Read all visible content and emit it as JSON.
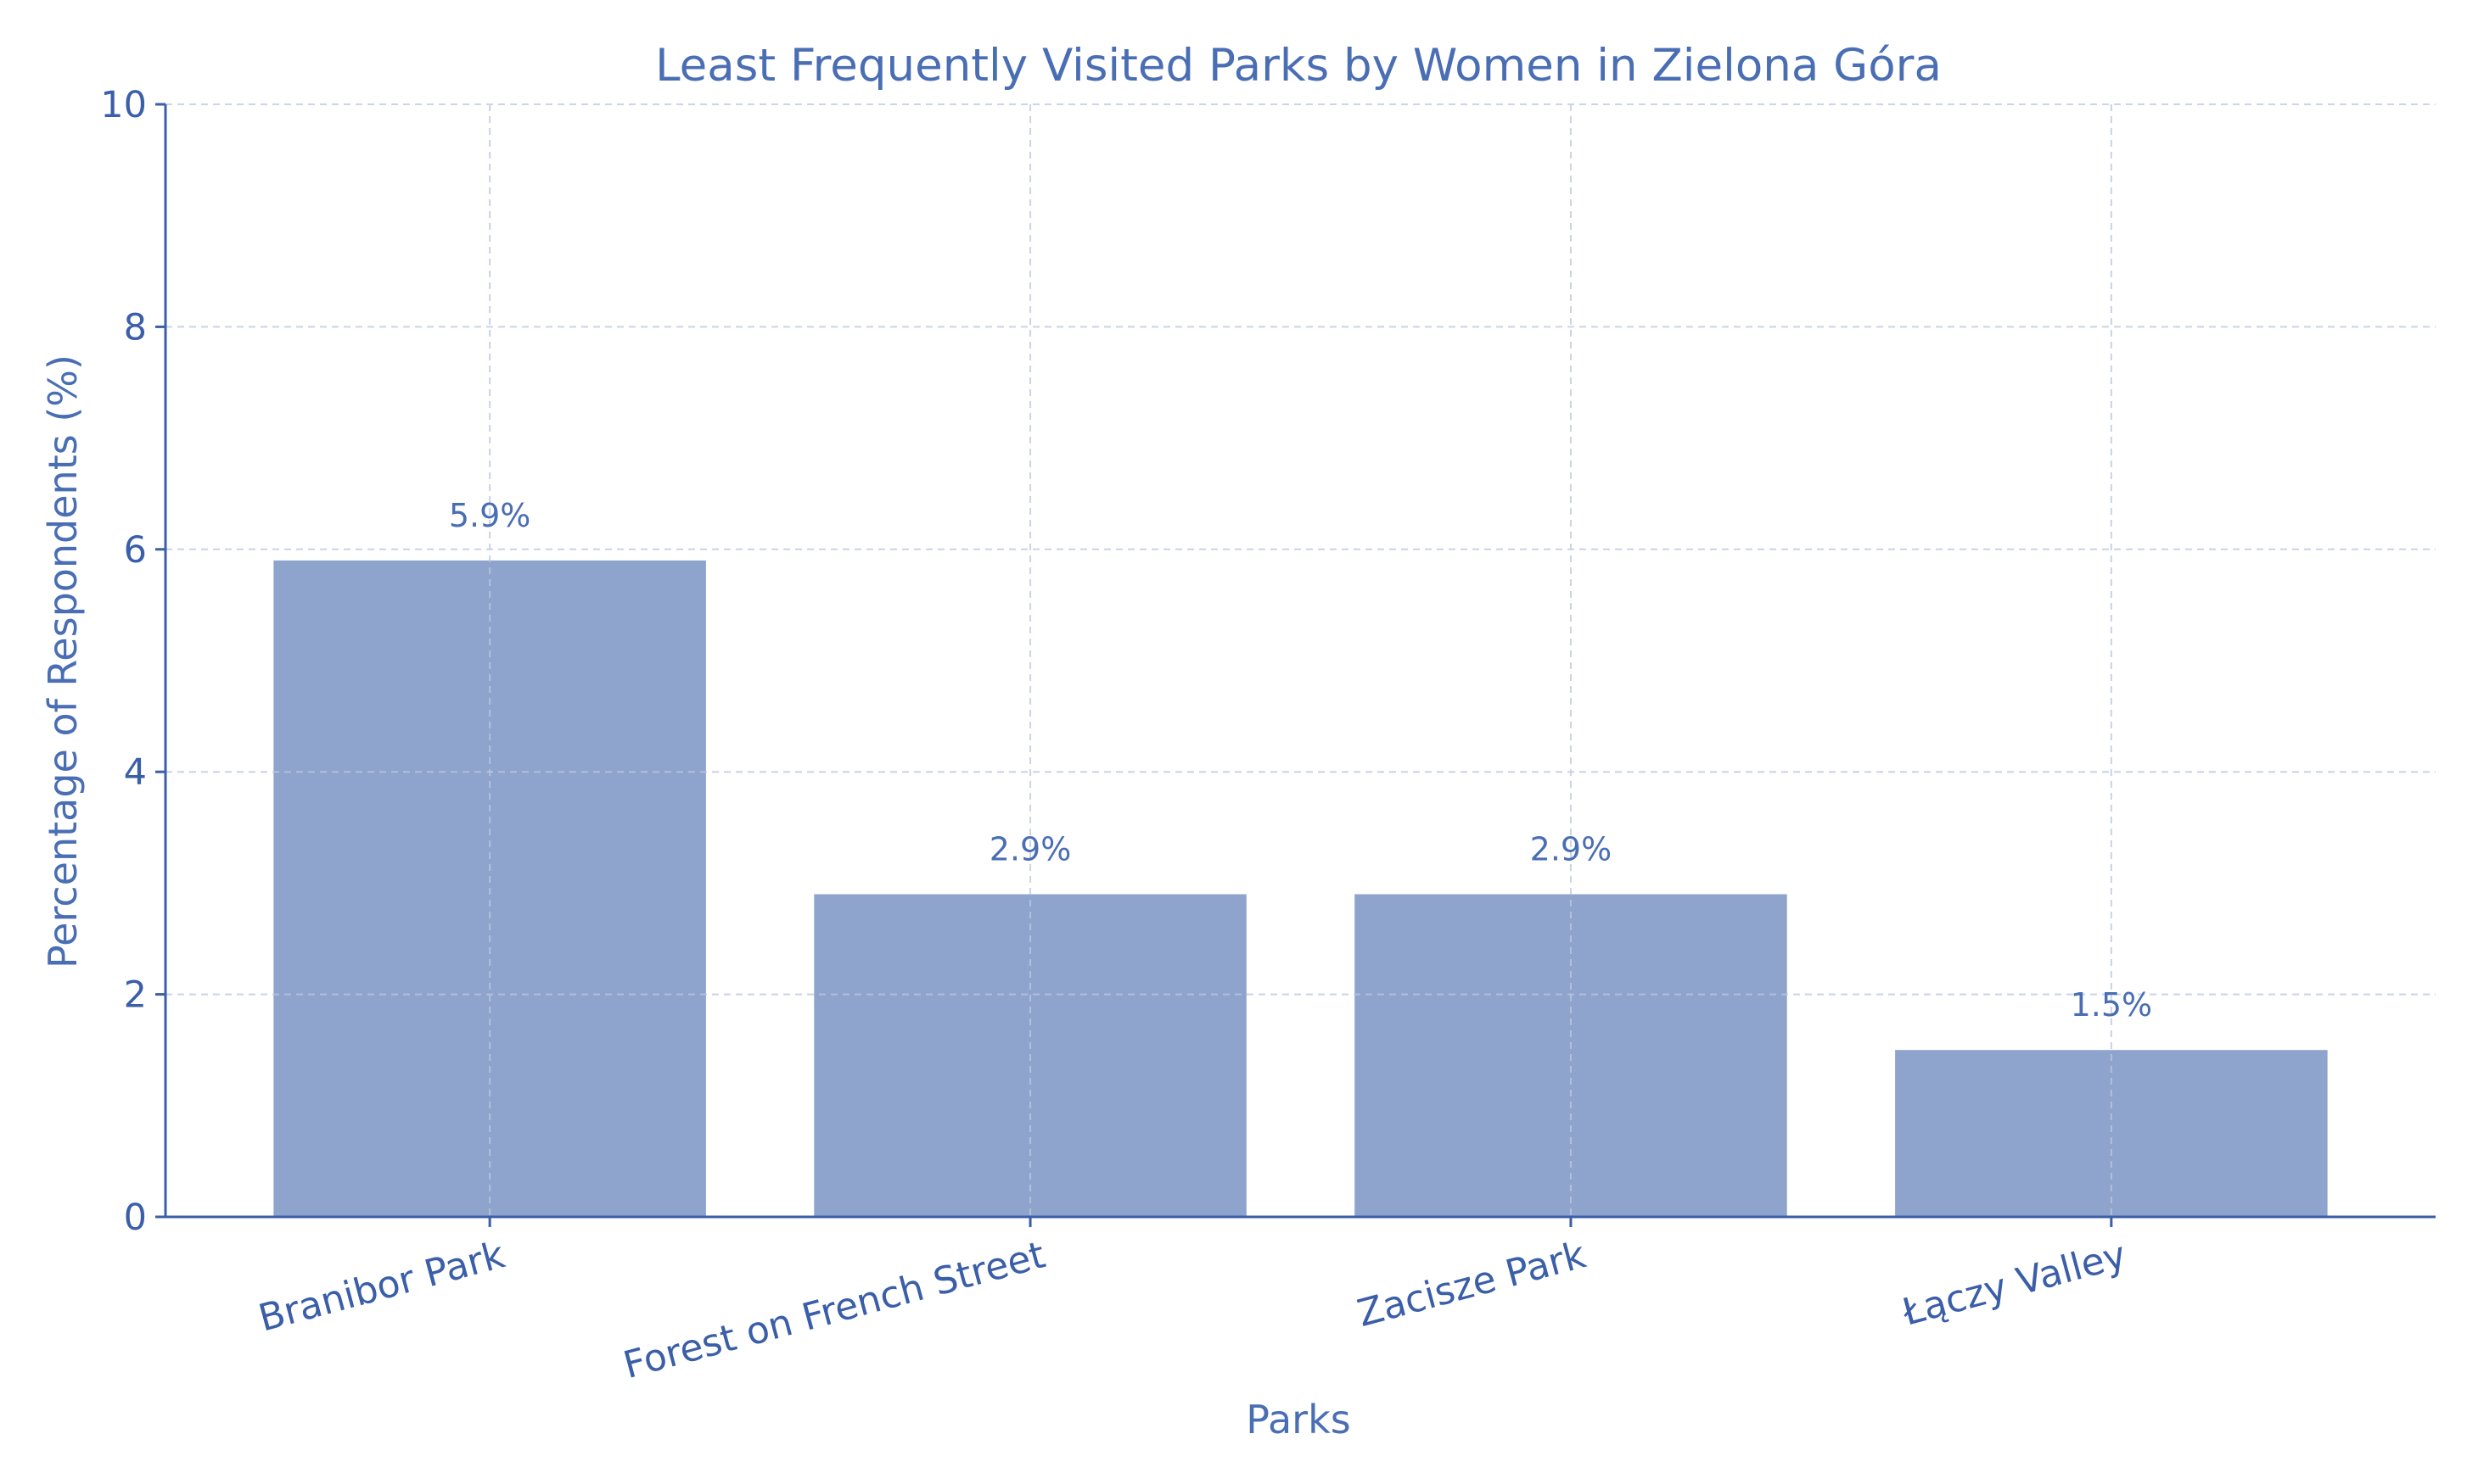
{
  "chart_data": {
    "type": "bar",
    "title": "Least Frequently Visited Parks by Women in Zielona Góra",
    "xlabel": "Parks",
    "ylabel": "Percentage of Respondents (%)",
    "categories": [
      "Branibor Park",
      "Forest on French Street",
      "Zacisze Park",
      "Łączy Valley"
    ],
    "values": [
      5.9,
      2.9,
      2.9,
      1.5
    ],
    "data_labels": [
      "5.9%",
      "2.9%",
      "2.9%",
      "1.5%"
    ],
    "ylim": [
      0,
      10
    ],
    "yticks": [
      0,
      2,
      4,
      6,
      8,
      10
    ],
    "ytick_labels": [
      "0",
      "2",
      "4",
      "6",
      "8",
      "10"
    ],
    "grid": true,
    "colors": {
      "bar": "#8fa4cc",
      "text": "#4a6eb4",
      "axis": "#3a5ea8",
      "grid": "#d3d9e8"
    }
  }
}
